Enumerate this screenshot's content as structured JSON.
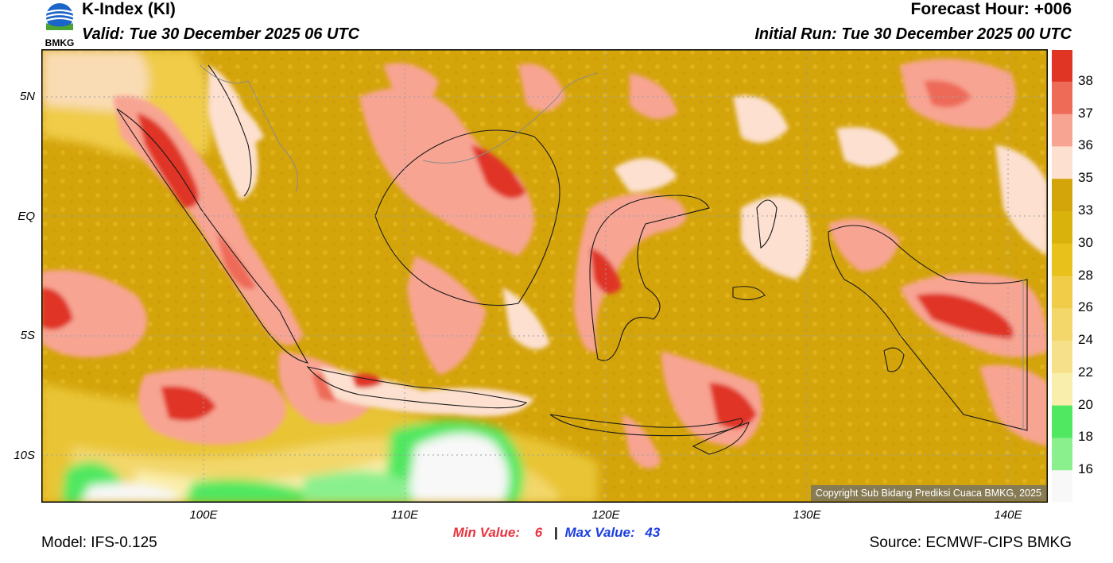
{
  "header": {
    "title": "K-Index (KI)",
    "valid": "Valid: Tue 30 December 2025 06 UTC",
    "forecast_hour": "Forecast Hour: +006",
    "initial_run": "Initial Run: Tue 30 December 2025 00 UTC"
  },
  "logo": {
    "text": "BMKG",
    "icon": "bmkg-logo-icon"
  },
  "map": {
    "lat_labels": [
      "5N",
      "EQ",
      "5S",
      "10S"
    ],
    "lon_labels": [
      "100E",
      "110E",
      "120E",
      "130E",
      "140E"
    ],
    "copyright": "Copyright Sub Bidang Prediksi Cuaca BMKG, 2025"
  },
  "colorbar": {
    "labels": [
      "38",
      "37",
      "36",
      "35",
      "33",
      "30",
      "28",
      "26",
      "24",
      "22",
      "20",
      "18",
      "16"
    ],
    "colors": [
      "#e03525",
      "#ee6b58",
      "#f8a493",
      "#fde0cf",
      "#d4a40b",
      "#dab20c",
      "#e8c21a",
      "#f0cc48",
      "#f3d76a",
      "#f6e089",
      "#faeeac",
      "#4fe860",
      "#8af08e",
      "#f8f8f8"
    ]
  },
  "stats": {
    "min_label": "Min Value:",
    "min_value": "6",
    "separator": "|",
    "max_label": "Max Value:",
    "max_value": "43"
  },
  "footer": {
    "model": "Model: IFS-0.125",
    "source": "Source: ECMWF-CIPS BMKG"
  }
}
